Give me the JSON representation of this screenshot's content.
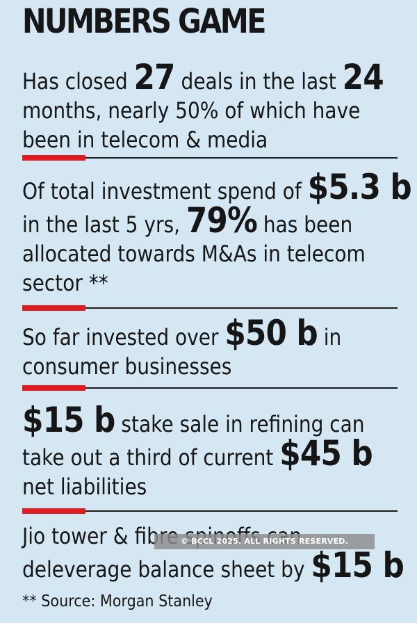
{
  "title": "NUMBERS GAME",
  "items": [
    {
      "lines": [
        [
          {
            "t": "Has closed ",
            "b": false
          },
          {
            "t": "27",
            "b": true
          },
          {
            "t": " deals in the last ",
            "b": false
          },
          {
            "t": "24",
            "b": true
          }
        ],
        [
          {
            "t": "months, nearly 50% of which have",
            "b": false
          }
        ],
        [
          {
            "t": "been in telecom & media",
            "b": false
          }
        ]
      ]
    },
    {
      "lines": [
        [
          {
            "t": "Of total investment spend of ",
            "b": false
          },
          {
            "t": "$5.3 b",
            "b": true
          }
        ],
        [
          {
            "t": "in the last 5 yrs, ",
            "b": false
          },
          {
            "t": "79%",
            "b": true
          },
          {
            "t": " has been",
            "b": false
          }
        ],
        [
          {
            "t": "allocated towards M&As in telecom",
            "b": false
          }
        ],
        [
          {
            "t": "sector **",
            "b": false
          }
        ]
      ]
    },
    {
      "lines": [
        [
          {
            "t": "So far invested over ",
            "b": false
          },
          {
            "t": "$50 b",
            "b": true
          },
          {
            "t": " in",
            "b": false
          }
        ],
        [
          {
            "t": "consumer businesses",
            "b": false
          }
        ]
      ]
    },
    {
      "lines": [
        [
          {
            "t": "$15 b",
            "b": true
          },
          {
            "t": " stake sale in refining can",
            "b": false
          }
        ],
        [
          {
            "t": "take out a third of current ",
            "b": false
          },
          {
            "t": "$45 b",
            "b": true
          }
        ],
        [
          {
            "t": "net liabilities",
            "b": false
          }
        ]
      ]
    },
    {
      "lines": [
        [
          {
            "t": "Jio tower & fibre spinoffs can",
            "b": false
          }
        ],
        [
          {
            "t": "deleverage balance sheet by ",
            "b": false
          },
          {
            "t": "$15 b",
            "b": true
          }
        ]
      ]
    }
  ],
  "source": "** Source: Morgan Stanley",
  "watermark": "© BCCL 2025. ALL RIGHTS RESERVED.",
  "colors": {
    "background": "#d4e7f3",
    "accent": "#e11b22",
    "text": "#161616"
  }
}
